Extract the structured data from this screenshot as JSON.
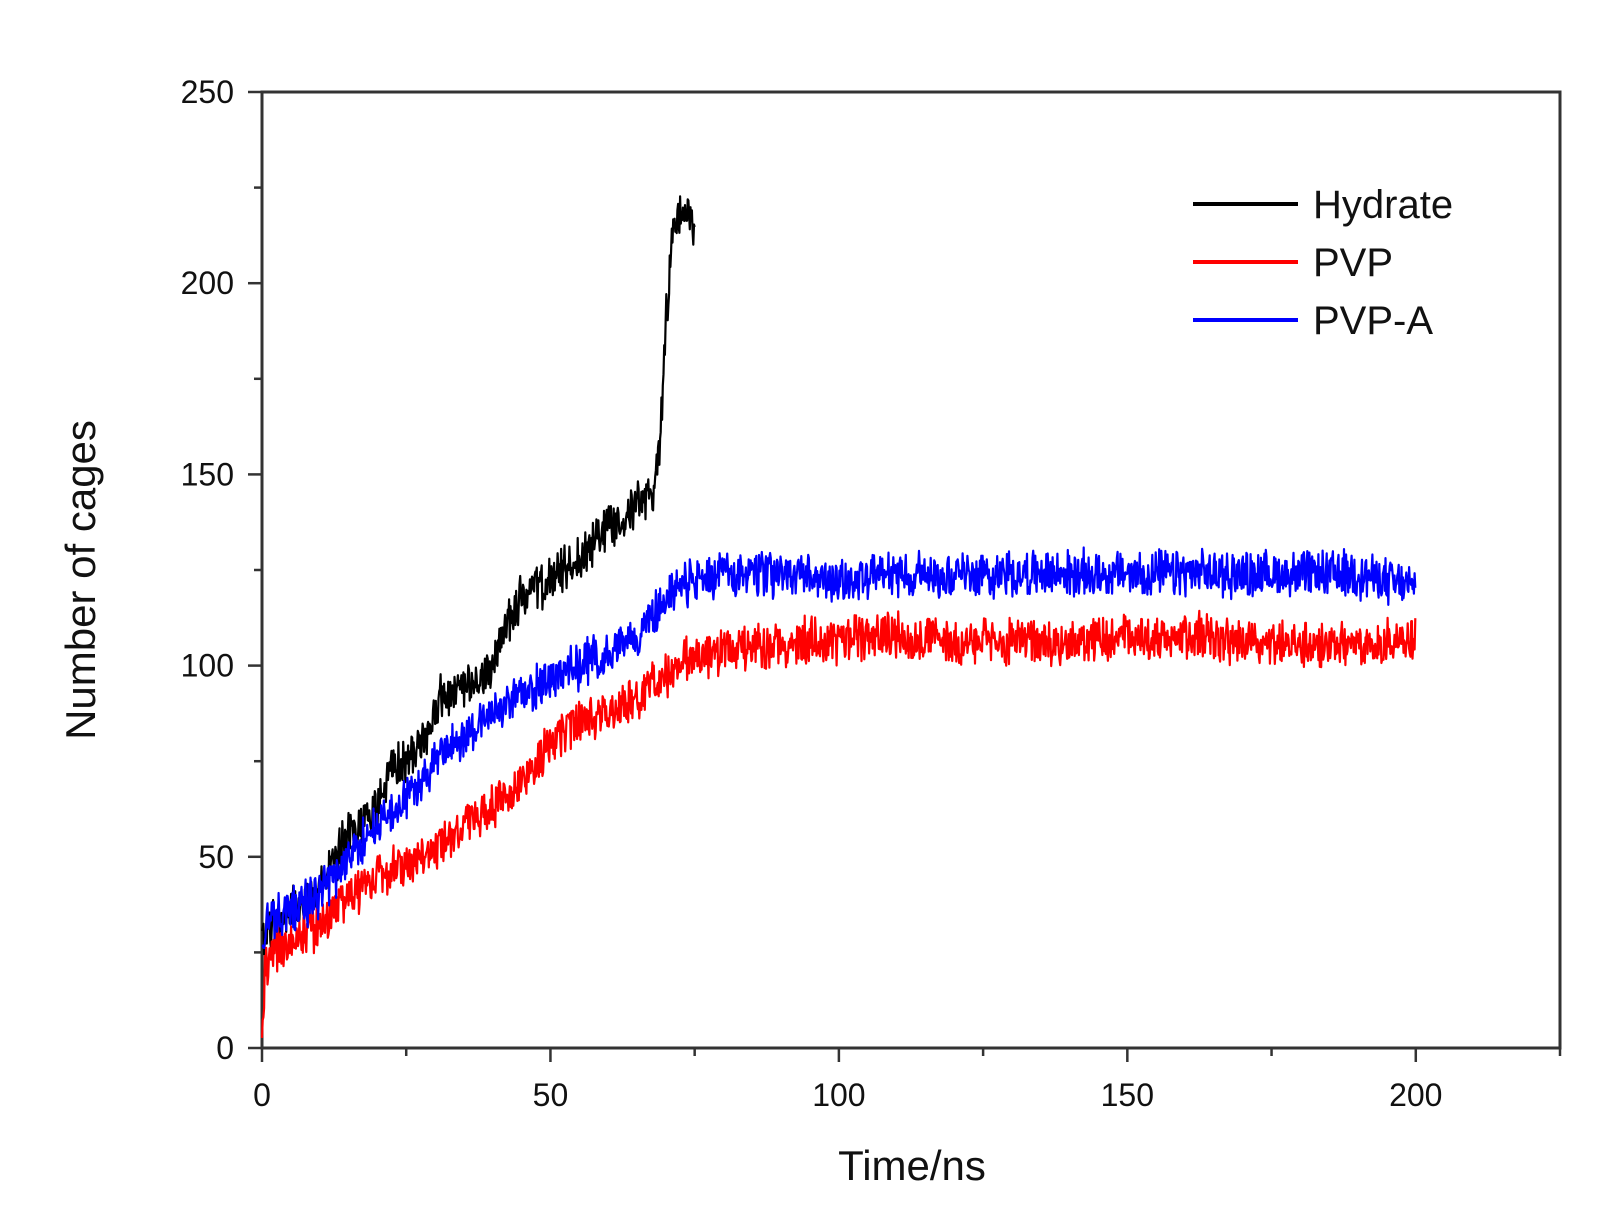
{
  "chart_data": {
    "type": "line",
    "title": "",
    "xlabel": "Time/ns",
    "ylabel": "Number of cages",
    "xlim": [
      0,
      225
    ],
    "ylim": [
      0,
      250
    ],
    "xticks": [
      0,
      50,
      100,
      150,
      200
    ],
    "yticks": [
      0,
      50,
      100,
      150,
      200,
      250
    ],
    "xtick_labels": [
      "0",
      "50",
      "100",
      "150",
      "200"
    ],
    "ytick_labels": [
      "0",
      "50",
      "100",
      "150",
      "200",
      "250"
    ],
    "minor_x_step": 25,
    "minor_y_step": 25,
    "grid": false,
    "legend_position": "top-right",
    "series": [
      {
        "name": "Hydrate",
        "color": "#000000",
        "noise": 5,
        "x": [
          0,
          2,
          5,
          10,
          13,
          16,
          20,
          22,
          25,
          28,
          31,
          35,
          38,
          40,
          42,
          45,
          50,
          55,
          60,
          65,
          68,
          69,
          70,
          71,
          72,
          73,
          75
        ],
        "y": [
          28,
          33,
          36,
          42,
          50,
          58,
          62,
          72,
          75,
          80,
          92,
          93,
          96,
          100,
          110,
          118,
          122,
          128,
          137,
          142,
          145,
          160,
          190,
          210,
          218,
          220,
          215
        ]
      },
      {
        "name": "PVP",
        "color": "#ff0000",
        "noise": 5,
        "x": [
          0,
          0.5,
          2,
          5,
          10,
          15,
          20,
          25,
          30,
          35,
          40,
          45,
          50,
          55,
          60,
          65,
          70,
          75,
          80,
          90,
          100,
          110,
          120,
          130,
          140,
          150,
          160,
          170,
          180,
          190,
          200
        ],
        "y": [
          5,
          20,
          25,
          28,
          32,
          40,
          45,
          48,
          52,
          58,
          63,
          70,
          80,
          85,
          88,
          92,
          98,
          102,
          104,
          106,
          107,
          108,
          106,
          106,
          106,
          107,
          108,
          106,
          105,
          106,
          106
        ]
      },
      {
        "name": "PVP-A",
        "color": "#0000ff",
        "noise": 5,
        "x": [
          0,
          1,
          5,
          10,
          15,
          20,
          25,
          30,
          35,
          40,
          45,
          50,
          55,
          60,
          65,
          70,
          75,
          80,
          90,
          100,
          110,
          120,
          130,
          140,
          150,
          160,
          170,
          180,
          190,
          200
        ],
        "y": [
          28,
          33,
          36,
          40,
          50,
          58,
          65,
          75,
          82,
          88,
          92,
          97,
          100,
          103,
          108,
          118,
          122,
          124,
          124,
          122,
          124,
          124,
          124,
          124,
          124,
          124,
          124,
          124,
          124,
          120
        ]
      }
    ]
  }
}
